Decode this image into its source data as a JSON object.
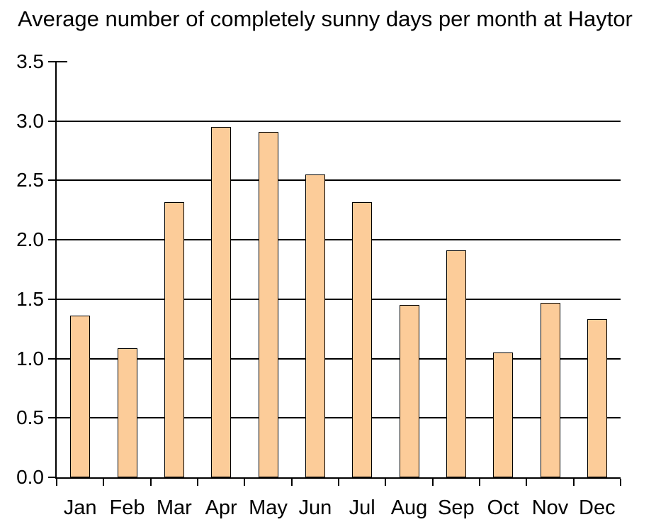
{
  "chart_data": {
    "type": "bar",
    "title": "Average number of completely sunny days per month at Haytor",
    "categories": [
      "Jan",
      "Feb",
      "Mar",
      "Apr",
      "May",
      "Jun",
      "Jul",
      "Aug",
      "Sep",
      "Oct",
      "Nov",
      "Dec"
    ],
    "values": [
      1.36,
      1.09,
      2.32,
      2.95,
      2.91,
      2.55,
      2.32,
      1.45,
      1.91,
      1.05,
      1.47,
      1.33
    ],
    "xlabel": "",
    "ylabel": "",
    "ylim": [
      0,
      3.5
    ],
    "ytick_step": 0.5,
    "ytick_labels": [
      "0.0",
      "0.5",
      "1.0",
      "1.5",
      "2.0",
      "2.5",
      "3.0",
      "3.5"
    ],
    "grid": true,
    "legend": "none",
    "colors": {
      "bar_fill": "#FCCC99",
      "bar_border": "#000000",
      "axis": "#000000",
      "text": "#000000",
      "background": "#FFFFFF"
    }
  }
}
